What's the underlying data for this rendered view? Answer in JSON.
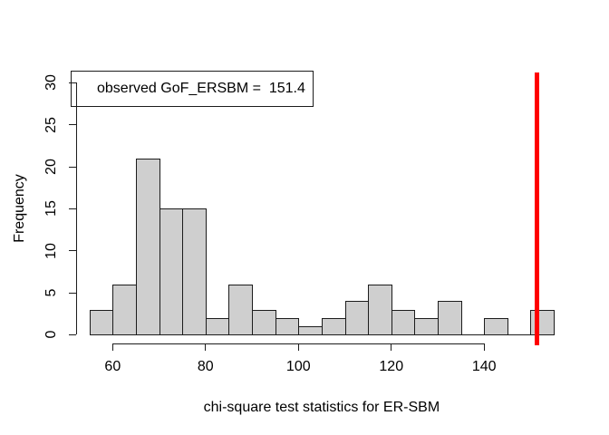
{
  "chart_data": {
    "type": "histogram",
    "title": "",
    "xlabel": "chi-square test statistics for ER-SBM",
    "ylabel": "Frequency",
    "bins": {
      "start": 55,
      "width": 5
    },
    "counts": [
      3,
      6,
      21,
      15,
      15,
      2,
      6,
      3,
      2,
      1,
      2,
      4,
      6,
      3,
      2,
      4,
      0,
      2,
      0,
      3
    ],
    "total_count": 100,
    "x_ticks": [
      60,
      80,
      100,
      120,
      140
    ],
    "y_ticks": [
      0,
      5,
      10,
      15,
      20,
      25,
      30
    ],
    "xlim": [
      51,
      159
    ],
    "ylim": [
      -1.2,
      31.2
    ],
    "grid": false,
    "bar_fill": "#CFCFCF",
    "bar_border": "#1c1c1c",
    "legend": {
      "position": "topleft",
      "label": "observed GoF_ERSBM =  151.4"
    },
    "vline": {
      "value": 151.4,
      "color": "#FF0000",
      "thickness_px": 5
    }
  }
}
